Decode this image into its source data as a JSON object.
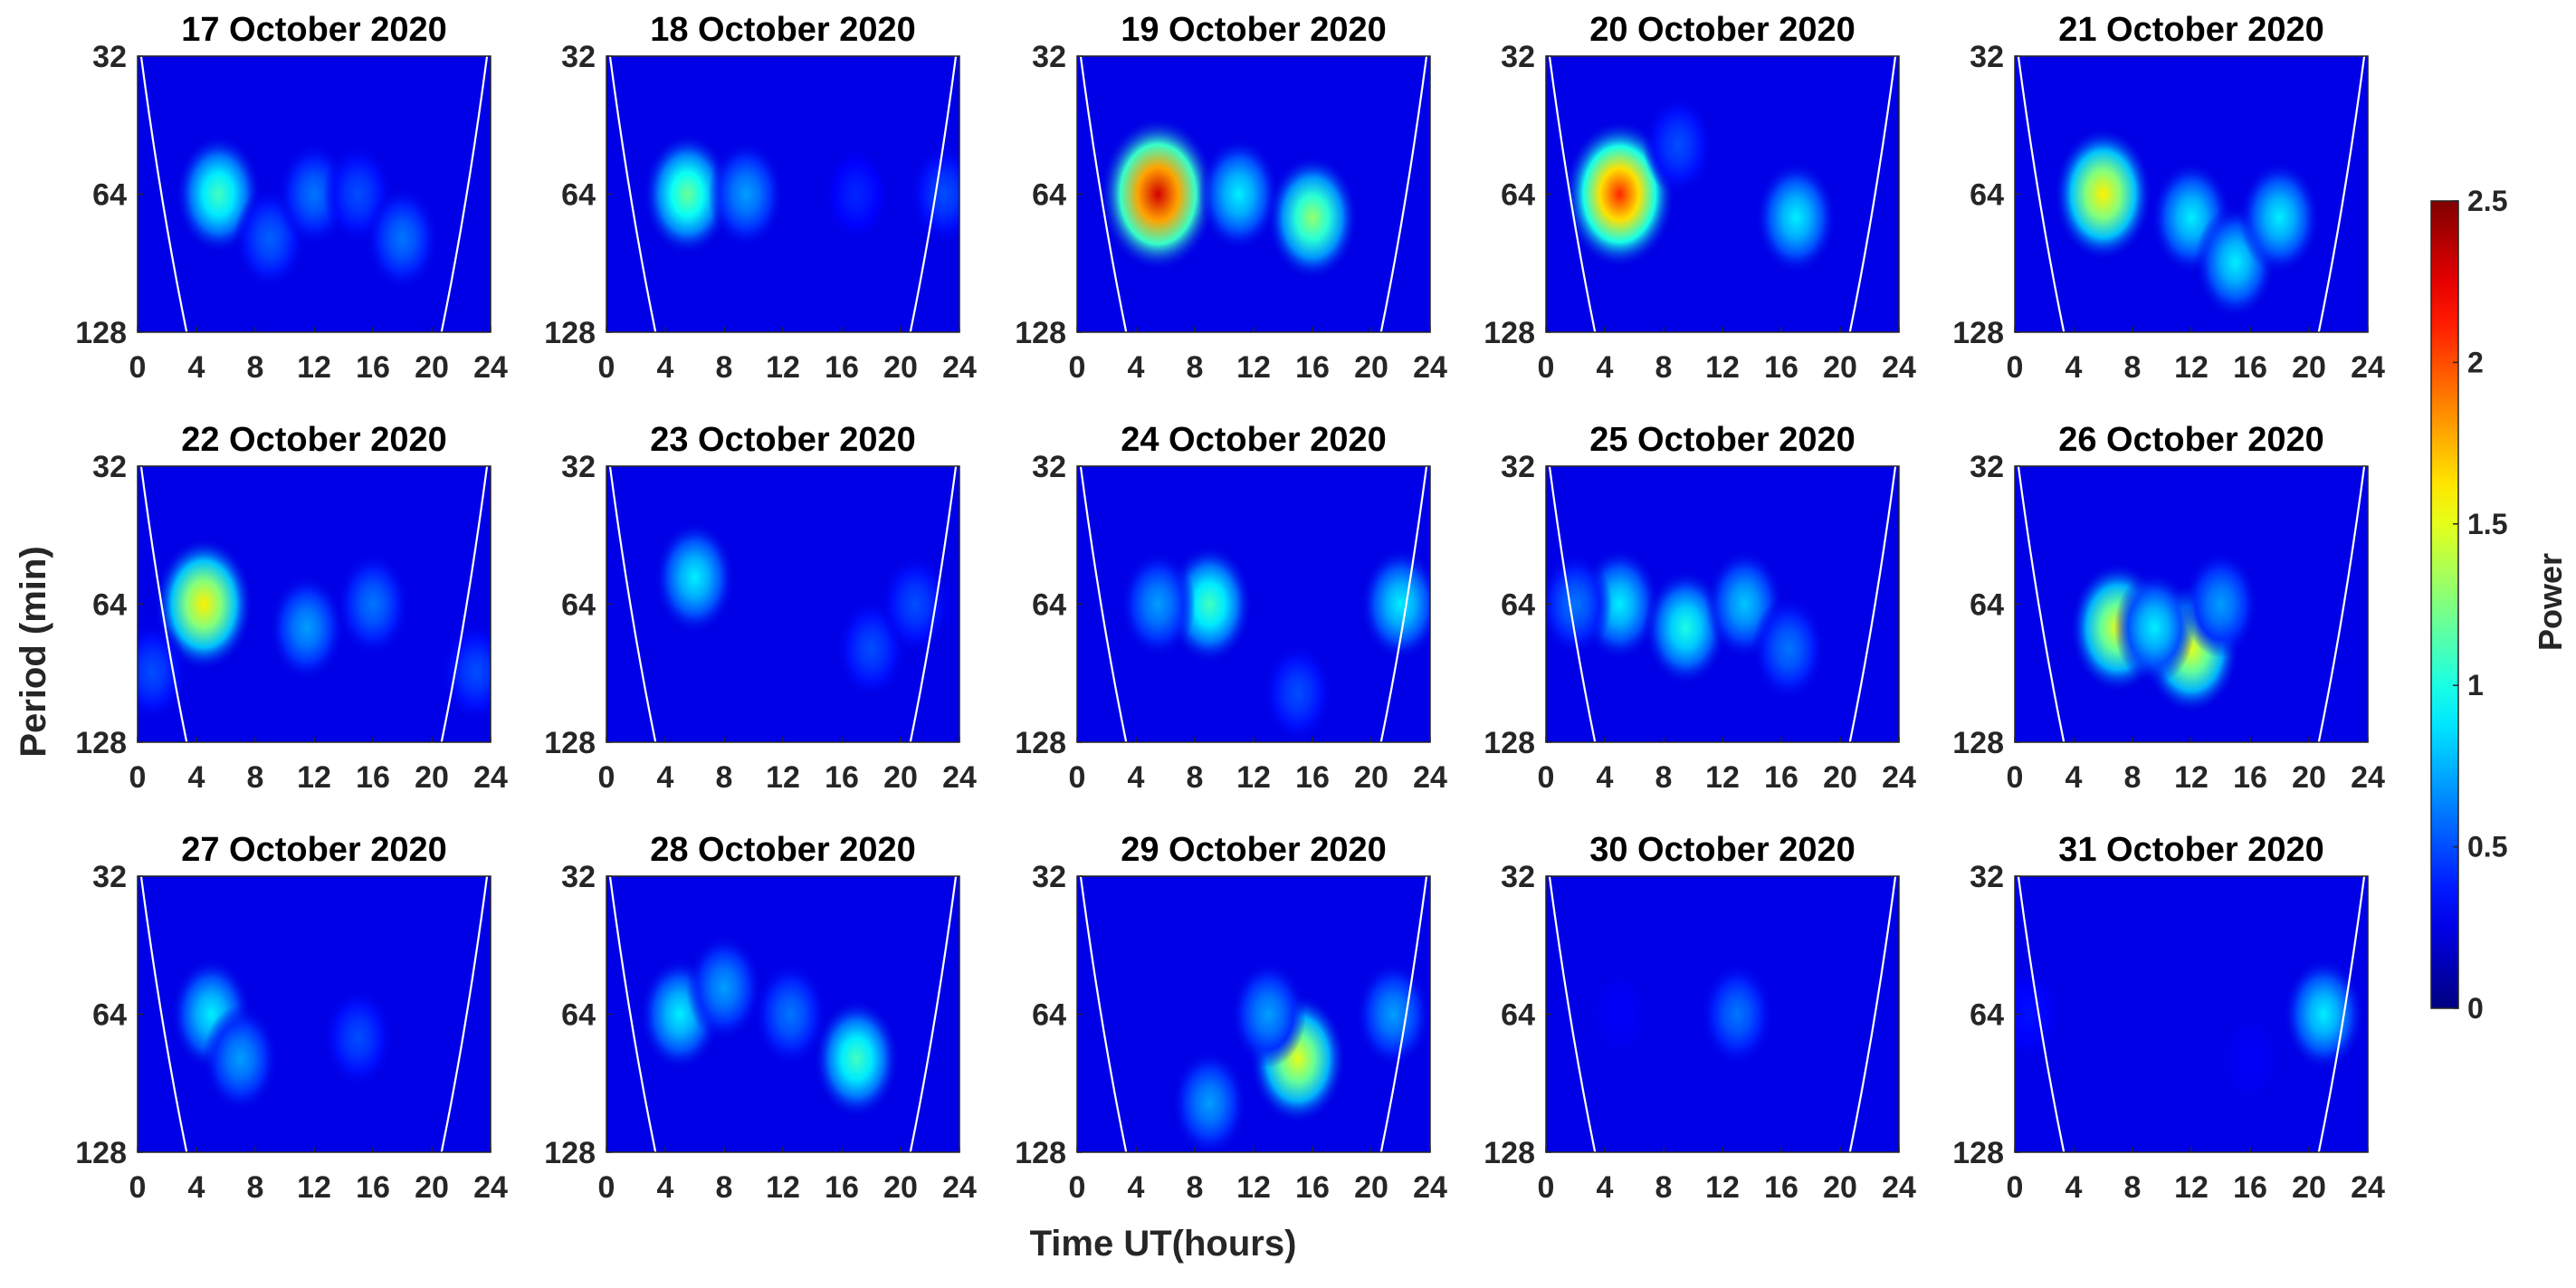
{
  "figure": {
    "xlabel": "Time UT(hours)",
    "ylabel": "Period (min)"
  },
  "colorbar": {
    "label": "Power",
    "ticks": [
      "0",
      "0.5",
      "1",
      "1.5",
      "2",
      "2.5"
    ],
    "range": [
      0,
      2.5
    ],
    "colormap": "jet"
  },
  "chart_data": {
    "type": "heatmap",
    "layout": "3 rows x 5 columns of wavelet power spectra",
    "xlim": [
      0,
      24
    ],
    "xticks": [
      "0",
      "4",
      "8",
      "12",
      "16",
      "20",
      "24"
    ],
    "ylim": [
      32,
      128
    ],
    "yscale": "log",
    "yticks": [
      "32",
      "64",
      "128"
    ],
    "cone_of_influence": "white curves near both time edges",
    "panels": [
      {
        "title": "17 October 2020",
        "blobs": [
          {
            "t": 5.5,
            "p": 64,
            "power": 1.1
          },
          {
            "t": 9,
            "p": 80,
            "power": 0.55
          },
          {
            "t": 12,
            "p": 64,
            "power": 0.6
          },
          {
            "t": 15,
            "p": 64,
            "power": 0.5
          },
          {
            "t": 18,
            "p": 80,
            "power": 0.6
          }
        ]
      },
      {
        "title": "18 October 2020",
        "blobs": [
          {
            "t": 5.5,
            "p": 64,
            "power": 1.2
          },
          {
            "t": 9.5,
            "p": 64,
            "power": 0.7
          },
          {
            "t": 17,
            "p": 64,
            "power": 0.4
          },
          {
            "t": 23,
            "p": 64,
            "power": 0.5
          }
        ]
      },
      {
        "title": "19 October 2020",
        "blobs": [
          {
            "t": 5.5,
            "p": 64,
            "power": 2.3
          },
          {
            "t": 11,
            "p": 64,
            "power": 0.9
          },
          {
            "t": 16,
            "p": 72,
            "power": 1.3
          }
        ]
      },
      {
        "title": "20 October 2020",
        "blobs": [
          {
            "t": 5,
            "p": 64,
            "power": 2.1
          },
          {
            "t": 9,
            "p": 50,
            "power": 0.5
          },
          {
            "t": 17,
            "p": 72,
            "power": 0.9
          }
        ]
      },
      {
        "title": "21 October 2020",
        "blobs": [
          {
            "t": 6,
            "p": 64,
            "power": 1.6
          },
          {
            "t": 12,
            "p": 72,
            "power": 0.9
          },
          {
            "t": 15,
            "p": 90,
            "power": 0.9
          },
          {
            "t": 18,
            "p": 72,
            "power": 0.9
          }
        ]
      },
      {
        "title": "22 October 2020",
        "blobs": [
          {
            "t": 4.5,
            "p": 64,
            "power": 1.6
          },
          {
            "t": 11.5,
            "p": 72,
            "power": 0.7
          },
          {
            "t": 16,
            "p": 64,
            "power": 0.6
          },
          {
            "t": 1,
            "p": 90,
            "power": 0.5
          },
          {
            "t": 23,
            "p": 90,
            "power": 0.5
          }
        ]
      },
      {
        "title": "23 October 2020",
        "blobs": [
          {
            "t": 6,
            "p": 56,
            "power": 0.9
          },
          {
            "t": 18,
            "p": 80,
            "power": 0.5
          },
          {
            "t": 21,
            "p": 64,
            "power": 0.5
          }
        ]
      },
      {
        "title": "24 October 2020",
        "blobs": [
          {
            "t": 9,
            "p": 64,
            "power": 1.1
          },
          {
            "t": 5.5,
            "p": 64,
            "power": 0.7
          },
          {
            "t": 15,
            "p": 100,
            "power": 0.5
          },
          {
            "t": 22,
            "p": 64,
            "power": 0.9
          }
        ]
      },
      {
        "title": "25 October 2020",
        "blobs": [
          {
            "t": 5,
            "p": 64,
            "power": 0.9
          },
          {
            "t": 9.5,
            "p": 72,
            "power": 1.0
          },
          {
            "t": 13.5,
            "p": 64,
            "power": 0.8
          },
          {
            "t": 16.5,
            "p": 80,
            "power": 0.6
          },
          {
            "t": 2,
            "p": 64,
            "power": 0.6
          }
        ]
      },
      {
        "title": "26 October 2020",
        "blobs": [
          {
            "t": 7,
            "p": 72,
            "power": 1.5
          },
          {
            "t": 12,
            "p": 80,
            "power": 1.5
          },
          {
            "t": 9.5,
            "p": 72,
            "power": 0.9
          },
          {
            "t": 14,
            "p": 64,
            "power": 0.7
          }
        ]
      },
      {
        "title": "27 October 2020",
        "blobs": [
          {
            "t": 5,
            "p": 64,
            "power": 0.9
          },
          {
            "t": 7,
            "p": 80,
            "power": 0.7
          },
          {
            "t": 15,
            "p": 72,
            "power": 0.5
          }
        ]
      },
      {
        "title": "28 October 2020",
        "blobs": [
          {
            "t": 5,
            "p": 64,
            "power": 0.9
          },
          {
            "t": 8,
            "p": 56,
            "power": 0.7
          },
          {
            "t": 12.5,
            "p": 64,
            "power": 0.6
          },
          {
            "t": 17,
            "p": 80,
            "power": 1.1
          }
        ]
      },
      {
        "title": "29 October 2020",
        "blobs": [
          {
            "t": 15,
            "p": 80,
            "power": 1.5
          },
          {
            "t": 13,
            "p": 64,
            "power": 0.7
          },
          {
            "t": 9,
            "p": 100,
            "power": 0.7
          },
          {
            "t": 21.5,
            "p": 64,
            "power": 0.7
          }
        ]
      },
      {
        "title": "30 October 2020",
        "blobs": [
          {
            "t": 13,
            "p": 64,
            "power": 0.6
          },
          {
            "t": 5,
            "p": 64,
            "power": 0.3
          }
        ]
      },
      {
        "title": "31 October 2020",
        "blobs": [
          {
            "t": 21,
            "p": 64,
            "power": 0.9
          },
          {
            "t": 1,
            "p": 64,
            "power": 0.35
          },
          {
            "t": 16,
            "p": 80,
            "power": 0.3
          }
        ]
      }
    ]
  }
}
